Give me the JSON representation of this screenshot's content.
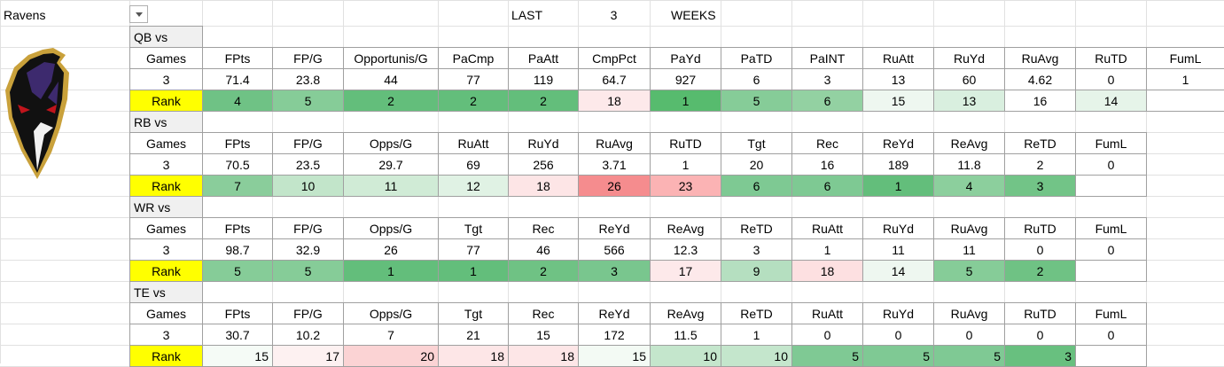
{
  "sheet": {
    "team": "Ravens",
    "header": [
      "LAST",
      "3",
      "WEEKS"
    ]
  },
  "sections": [
    {
      "title": "QB vs",
      "columns": [
        "Games",
        "FPts",
        "FP/G",
        "Opportunis/G",
        "PaCmp",
        "PaAtt",
        "CmpPct",
        "PaYd",
        "PaTD",
        "PaINT",
        "RuAtt",
        "RuYd",
        "RuAvg",
        "RuTD",
        "FumL"
      ],
      "values": [
        3,
        71.4,
        23.8,
        44,
        77,
        119,
        64.7,
        927,
        6,
        3,
        13,
        60,
        4.62,
        0,
        1
      ],
      "rank_label": "Rank",
      "ranks": [
        4,
        5,
        2,
        2,
        2,
        18,
        1,
        5,
        6,
        15,
        13,
        16,
        14
      ],
      "rank_colors": [
        "#6fc285",
        "#86cc98",
        "#63be7b",
        "#63be7b",
        "#63be7b",
        "#fde9ea",
        "#57bb6e",
        "#86cc98",
        "#93d1a2",
        "#eef7f0",
        "#d9efdf",
        "#ffffff",
        "#e6f4e9"
      ],
      "rank_align": "center"
    },
    {
      "title": "RB vs",
      "columns": [
        "Games",
        "FPts",
        "FP/G",
        "Opps/G",
        "RuAtt",
        "RuYd",
        "RuAvg",
        "RuTD",
        "Tgt",
        "Rec",
        "ReYd",
        "ReAvg",
        "ReTD",
        "FumL"
      ],
      "values": [
        3,
        70.5,
        23.5,
        29.7,
        69,
        256,
        3.71,
        1,
        20,
        16,
        189,
        11.8,
        2,
        0
      ],
      "rank_label": "Rank",
      "ranks": [
        7,
        10,
        11,
        12,
        18,
        26,
        23,
        6,
        6,
        1,
        4,
        3
      ],
      "rank_colors": [
        "#8acd9b",
        "#c2e5ca",
        "#d0ebd6",
        "#e0f2e4",
        "#fde5e6",
        "#f58c8e",
        "#fbb3b4",
        "#7ec993",
        "#7ec993",
        "#63be7b",
        "#8ccf9d",
        "#72c487"
      ],
      "rank_align": "center"
    },
    {
      "title": "WR vs",
      "columns": [
        "Games",
        "FPts",
        "FP/G",
        "Opps/G",
        "Tgt",
        "Rec",
        "ReYd",
        "ReAvg",
        "ReTD",
        "RuAtt",
        "RuYd",
        "RuAvg",
        "RuTD",
        "FumL"
      ],
      "values": [
        3,
        98.7,
        32.9,
        26,
        77,
        46,
        566,
        12.3,
        3,
        1,
        11,
        11,
        0,
        0
      ],
      "rank_label": "Rank",
      "ranks": [
        5,
        5,
        1,
        1,
        2,
        3,
        17,
        9,
        18,
        14,
        5,
        2
      ],
      "rank_colors": [
        "#86cc98",
        "#86cc98",
        "#63be7b",
        "#63be7b",
        "#6fc284",
        "#79c68e",
        "#fde9ea",
        "#b5dfc0",
        "#fde0e1",
        "#eef7f0",
        "#86cc98",
        "#6fc284"
      ],
      "rank_align": "center"
    },
    {
      "title": "TE vs",
      "columns": [
        "Games",
        "FPts",
        "FP/G",
        "Opps/G",
        "Tgt",
        "Rec",
        "ReYd",
        "ReAvg",
        "ReTD",
        "RuAtt",
        "RuYd",
        "RuAvg",
        "RuTD",
        "FumL"
      ],
      "values": [
        3,
        30.7,
        10.2,
        7,
        21,
        15,
        172,
        11.5,
        1,
        0,
        0,
        0,
        0,
        0
      ],
      "rank_label": "Rank",
      "ranks": [
        15,
        17,
        20,
        18,
        18,
        15,
        10,
        10,
        5,
        5,
        5,
        3
      ],
      "rank_colors": [
        "#f5fbf6",
        "#fdf1f1",
        "#fbd3d4",
        "#fde6e7",
        "#fde6e7",
        "#f3faf4",
        "#c4e6cc",
        "#c4e6cc",
        "#7fc994",
        "#7fc994",
        "#7fc994",
        "#68c07f"
      ],
      "rank_align": "right"
    }
  ]
}
